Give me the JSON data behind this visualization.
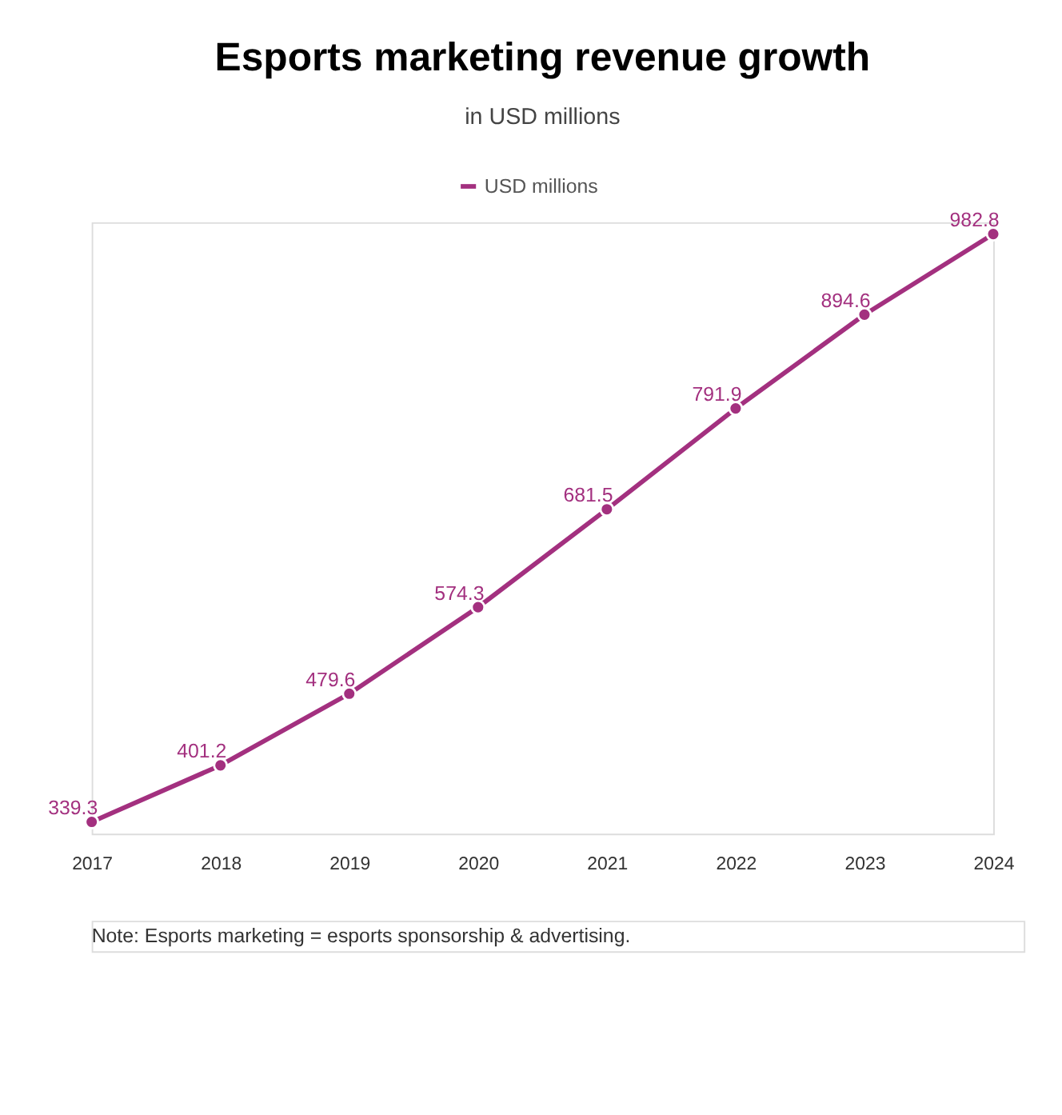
{
  "chart_data": {
    "type": "line",
    "title": "Esports marketing revenue growth",
    "subtitle": "in USD millions",
    "categories": [
      "2017",
      "2018",
      "2019",
      "2020",
      "2021",
      "2022",
      "2023",
      "2024"
    ],
    "series": [
      {
        "name": "USD millions",
        "color": "#a3307f",
        "values": [
          339.3,
          401.2,
          479.6,
          574.3,
          681.5,
          791.9,
          894.6,
          982.8
        ]
      }
    ],
    "data_labels": true,
    "marker": "circle",
    "line_style": "solid",
    "legend": "top",
    "grid": false,
    "annotations": [
      "Note: Esports marketing = esports sponsorship & advertising."
    ]
  }
}
